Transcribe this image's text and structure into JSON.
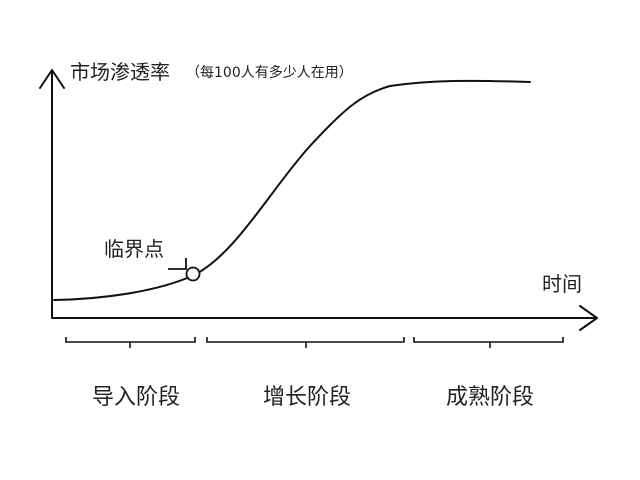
{
  "y_axis": {
    "title": "市场渗透率",
    "subtitle": "（每100人有多少人在用）"
  },
  "x_axis": {
    "title": "时间"
  },
  "critical_point": {
    "label": "临界点"
  },
  "stages": [
    {
      "label": "导入阶段"
    },
    {
      "label": "增长阶段"
    },
    {
      "label": "成熟阶段"
    }
  ],
  "colors": {
    "ink": "#111111",
    "text": "#222222",
    "background": "#ffffff"
  }
}
